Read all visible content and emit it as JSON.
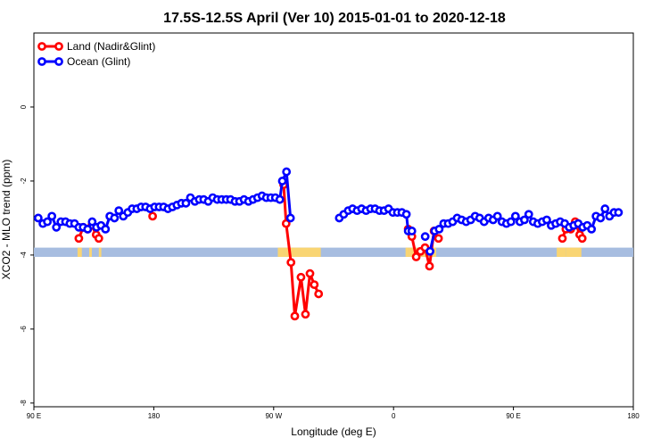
{
  "chart_data": {
    "type": "line",
    "title": "17.5S-12.5S April (Ver 10)   2015-01-01 to 2020-12-18",
    "xlabel": "Longitude (deg E)",
    "ylabel": "XCO2 - MLO trend (ppm)",
    "xlim": [
      90,
      450
    ],
    "ylim": [
      -8.1,
      2.0
    ],
    "xticks": [
      {
        "value": 90,
        "label": "90 E"
      },
      {
        "value": 162,
        "label": "180"
      },
      {
        "value": 234,
        "label": "90 W"
      },
      {
        "value": 306,
        "label": "0"
      },
      {
        "value": 378,
        "label": "90 E"
      },
      {
        "value": 450,
        "label": "180"
      }
    ],
    "yticks": [
      {
        "value": 0,
        "label": "0"
      },
      {
        "value": -2,
        "label": "-2"
      },
      {
        "value": -4,
        "label": "-4"
      },
      {
        "value": -6,
        "label": "-6"
      },
      {
        "value": -8,
        "label": "-8"
      }
    ],
    "legend_position": "top-left",
    "series": [
      {
        "name": "Land (Nadir&Glint)",
        "color": "#ff0000",
        "segments": [
          [
            [
              117,
              -3.55
            ],
            [
              119.6,
              -3.25
            ],
            [
              122.3,
              -3.3
            ],
            [
              124.8,
              -3.2
            ],
            [
              127.4,
              -3.45
            ],
            [
              129,
              -3.55
            ]
          ],
          [
            [
              161.3,
              -2.95
            ]
          ],
          [
            [
              240,
              -2.1
            ],
            [
              241.5,
              -3.15
            ],
            [
              244.4,
              -4.2
            ],
            [
              246.7,
              -5.65
            ],
            [
              250.4,
              -4.6
            ],
            [
              253.1,
              -5.6
            ],
            [
              255.8,
              -4.5
            ],
            [
              258.4,
              -4.8
            ],
            [
              261,
              -5.05
            ]
          ],
          [
            [
              314.8,
              -3.3
            ],
            [
              317,
              -3.5
            ],
            [
              319.6,
              -4.05
            ],
            [
              322.2,
              -3.9
            ],
            [
              324.9,
              -3.8
            ],
            [
              327.6,
              -4.3
            ],
            [
              330.3,
              -3.35
            ],
            [
              333,
              -3.55
            ]
          ],
          [
            [
              407.4,
              -3.55
            ],
            [
              409.5,
              -3.3
            ],
            [
              412.4,
              -3.3
            ],
            [
              415.1,
              -3.1
            ],
            [
              417.8,
              -3.45
            ],
            [
              419.3,
              -3.55
            ]
          ]
        ]
      },
      {
        "name": "Ocean (Glint)",
        "color": "#0000ff",
        "segments": [
          [
            [
              92.6,
              -3.0
            ],
            [
              95.4,
              -3.15
            ],
            [
              98.1,
              -3.1
            ],
            [
              100.8,
              -2.95
            ],
            [
              103.5,
              -3.25
            ],
            [
              106.2,
              -3.1
            ],
            [
              109,
              -3.1
            ],
            [
              111.6,
              -3.15
            ],
            [
              114.4,
              -3.15
            ],
            [
              117,
              -3.25
            ],
            [
              119.6,
              -3.25
            ],
            [
              122.3,
              -3.3
            ],
            [
              125,
              -3.1
            ],
            [
              127.6,
              -3.25
            ],
            [
              130.3,
              -3.2
            ],
            [
              133,
              -3.3
            ],
            [
              135.6,
              -2.95
            ],
            [
              138.4,
              -3.0
            ],
            [
              141,
              -2.8
            ],
            [
              143.7,
              -2.95
            ],
            [
              146.4,
              -2.85
            ],
            [
              149,
              -2.75
            ],
            [
              151.8,
              -2.75
            ],
            [
              154.4,
              -2.7
            ],
            [
              157.1,
              -2.7
            ],
            [
              159.8,
              -2.75
            ],
            [
              162.5,
              -2.7
            ],
            [
              165.2,
              -2.7
            ],
            [
              167.9,
              -2.7
            ],
            [
              170.5,
              -2.75
            ],
            [
              173.2,
              -2.7
            ],
            [
              175.9,
              -2.65
            ],
            [
              178.6,
              -2.6
            ],
            [
              181.3,
              -2.6
            ],
            [
              184,
              -2.45
            ],
            [
              186.7,
              -2.55
            ],
            [
              189.3,
              -2.5
            ],
            [
              192,
              -2.5
            ],
            [
              194.7,
              -2.55
            ],
            [
              197.4,
              -2.45
            ],
            [
              200.1,
              -2.5
            ],
            [
              202.8,
              -2.5
            ],
            [
              205.5,
              -2.5
            ],
            [
              208.1,
              -2.5
            ],
            [
              210.8,
              -2.55
            ],
            [
              213.5,
              -2.55
            ],
            [
              216.2,
              -2.5
            ],
            [
              218.9,
              -2.55
            ],
            [
              221.6,
              -2.5
            ],
            [
              224.3,
              -2.45
            ],
            [
              227,
              -2.4
            ],
            [
              229.6,
              -2.45
            ],
            [
              232.3,
              -2.45
            ],
            [
              235,
              -2.45
            ],
            [
              237.7,
              -2.5
            ],
            [
              239.2,
              -2.0
            ],
            [
              241.7,
              -1.75
            ],
            [
              244.1,
              -3.0
            ]
          ],
          [
            [
              273.4,
              -3.0
            ],
            [
              276.1,
              -2.9
            ],
            [
              278.8,
              -2.8
            ],
            [
              281.4,
              -2.75
            ],
            [
              284.1,
              -2.8
            ],
            [
              286.8,
              -2.75
            ],
            [
              289.5,
              -2.8
            ],
            [
              292.2,
              -2.75
            ],
            [
              294.9,
              -2.75
            ],
            [
              297.6,
              -2.8
            ],
            [
              300.3,
              -2.8
            ],
            [
              303,
              -2.75
            ],
            [
              305.6,
              -2.85
            ],
            [
              308.3,
              -2.85
            ],
            [
              311,
              -2.85
            ],
            [
              313.7,
              -2.9
            ],
            [
              314.8,
              -3.35
            ],
            [
              317,
              -3.35
            ]
          ],
          [
            [
              325,
              -3.5
            ]
          ],
          [
            [
              327.9,
              -3.9
            ],
            [
              330.7,
              -3.35
            ],
            [
              333.4,
              -3.3
            ],
            [
              336.1,
              -3.15
            ],
            [
              338.8,
              -3.15
            ],
            [
              341.5,
              -3.1
            ],
            [
              344.2,
              -3.0
            ],
            [
              346.9,
              -3.05
            ],
            [
              349.6,
              -3.1
            ],
            [
              352.3,
              -3.05
            ],
            [
              355,
              -2.95
            ],
            [
              357.7,
              -3.0
            ],
            [
              360.4,
              -3.1
            ],
            [
              363.1,
              -3.0
            ],
            [
              365.8,
              -3.05
            ],
            [
              368.4,
              -2.95
            ],
            [
              371.1,
              -3.1
            ],
            [
              373.8,
              -3.15
            ],
            [
              376.5,
              -3.1
            ],
            [
              379.2,
              -2.95
            ],
            [
              381.9,
              -3.1
            ],
            [
              384.6,
              -3.05
            ],
            [
              387.2,
              -2.9
            ],
            [
              389.9,
              -3.1
            ],
            [
              392.6,
              -3.15
            ],
            [
              395.3,
              -3.1
            ],
            [
              398,
              -3.05
            ],
            [
              400.7,
              -3.2
            ],
            [
              403.4,
              -3.15
            ],
            [
              406.1,
              -3.1
            ],
            [
              408.8,
              -3.15
            ],
            [
              411.5,
              -3.25
            ],
            [
              414.2,
              -3.2
            ],
            [
              416.9,
              -3.15
            ],
            [
              419.6,
              -3.25
            ],
            [
              422.3,
              -3.2
            ],
            [
              424.9,
              -3.3
            ],
            [
              427.6,
              -2.95
            ],
            [
              430.3,
              -3.0
            ],
            [
              433,
              -2.75
            ],
            [
              435.7,
              -2.95
            ],
            [
              438.4,
              -2.85
            ],
            [
              441.1,
              -2.85
            ]
          ]
        ]
      }
    ],
    "land_band": {
      "y": [
        -4.05,
        -3.8
      ],
      "base_color": "#a7bde0",
      "land_color": "#f9d573",
      "land_ranges": [
        [
          116.2,
          118.8
        ],
        [
          123.2,
          124.8
        ],
        [
          129,
          130.5
        ],
        [
          236.5,
          240.3
        ],
        [
          240.3,
          262.3
        ],
        [
          313.2,
          315.5
        ],
        [
          315.5,
          331.6
        ],
        [
          404,
          409.4
        ],
        [
          409.4,
          418.8
        ]
      ]
    }
  }
}
